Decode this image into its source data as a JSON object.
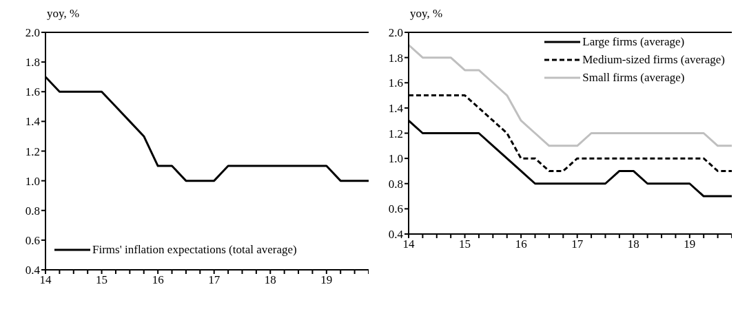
{
  "chart_data": [
    {
      "type": "line",
      "ylabel": "yoy, %",
      "x": [
        14,
        14.25,
        14.5,
        14.75,
        15,
        15.25,
        15.5,
        15.75,
        16,
        16.25,
        16.5,
        16.75,
        17,
        17.25,
        17.5,
        17.75,
        18,
        18.25,
        18.5,
        18.75,
        19,
        19.25,
        19.5,
        19.75
      ],
      "series": [
        {
          "name": "Firms' inflation expectations (total average)",
          "color": "#000000",
          "line_style": "solid",
          "values": [
            1.7,
            1.6,
            1.6,
            1.6,
            1.6,
            1.5,
            1.4,
            1.3,
            1.1,
            1.1,
            1.0,
            1.0,
            1.0,
            1.1,
            1.1,
            1.1,
            1.1,
            1.1,
            1.1,
            1.1,
            1.1,
            1.0,
            1.0,
            1.0
          ]
        }
      ],
      "xlim": [
        14,
        19.75
      ],
      "xticks": [
        14,
        {
          "value": 14.25,
          "label": null
        },
        {
          "value": 14.5,
          "label": null
        },
        {
          "value": 14.75,
          "label": null
        },
        15,
        {
          "value": 15.25,
          "label": null
        },
        {
          "value": 15.5,
          "label": null
        },
        {
          "value": 15.75,
          "label": null
        },
        16,
        {
          "value": 16.25,
          "label": null
        },
        {
          "value": 16.5,
          "label": null
        },
        {
          "value": 16.75,
          "label": null
        },
        17,
        {
          "value": 17.25,
          "label": null
        },
        {
          "value": 17.5,
          "label": null
        },
        {
          "value": 17.75,
          "label": null
        },
        18,
        {
          "value": 18.25,
          "label": null
        },
        {
          "value": 18.5,
          "label": null
        },
        {
          "value": 18.75,
          "label": null
        },
        19,
        {
          "value": 19.25,
          "label": null
        },
        {
          "value": 19.5,
          "label": null
        },
        {
          "value": 19.75,
          "label": null
        }
      ],
      "ylim": [
        0.4,
        2.0
      ],
      "yticks": [
        {
          "value": 0.4,
          "label": "0.4"
        },
        {
          "value": 0.6,
          "label": "0.6"
        },
        {
          "value": 0.8,
          "label": "0.8"
        },
        {
          "value": 1.0,
          "label": "1.0"
        },
        {
          "value": 1.2,
          "label": "1.2"
        },
        {
          "value": 1.4,
          "label": "1.4"
        },
        {
          "value": 1.6,
          "label": "1.6"
        },
        {
          "value": 1.8,
          "label": "1.8"
        },
        {
          "value": 2.0,
          "label": "2.0"
        }
      ],
      "grid": false,
      "legend": "bottom left",
      "marker": "none"
    },
    {
      "type": "line",
      "ylabel": "yoy, %",
      "x": [
        14,
        14.25,
        14.5,
        14.75,
        15,
        15.25,
        15.5,
        15.75,
        16,
        16.25,
        16.5,
        16.75,
        17,
        17.25,
        17.5,
        17.75,
        18,
        18.25,
        18.5,
        18.75,
        19,
        19.25,
        19.5,
        19.75
      ],
      "series": [
        {
          "name": "Large firms (average)",
          "color": "#000000",
          "line_style": "solid",
          "values": [
            1.3,
            1.2,
            1.2,
            1.2,
            1.2,
            1.2,
            1.1,
            1.0,
            0.9,
            0.8,
            0.8,
            0.8,
            0.8,
            0.8,
            0.8,
            0.9,
            0.9,
            0.8,
            0.8,
            0.8,
            0.8,
            0.7,
            0.7,
            0.7
          ]
        },
        {
          "name": "Medium-sized firms (average)",
          "color": "#000000",
          "line_style": "dashed",
          "values": [
            1.5,
            1.5,
            1.5,
            1.5,
            1.5,
            1.4,
            1.3,
            1.2,
            1.0,
            1.0,
            0.9,
            0.9,
            1.0,
            1.0,
            1.0,
            1.0,
            1.0,
            1.0,
            1.0,
            1.0,
            1.0,
            1.0,
            0.9,
            0.9
          ]
        },
        {
          "name": "Small firms (average)",
          "color": "#bfbfbf",
          "line_style": "solid",
          "values": [
            1.9,
            1.8,
            1.8,
            1.8,
            1.7,
            1.7,
            1.6,
            1.5,
            1.3,
            1.2,
            1.1,
            1.1,
            1.1,
            1.2,
            1.2,
            1.2,
            1.2,
            1.2,
            1.2,
            1.2,
            1.2,
            1.2,
            1.1,
            1.1
          ]
        }
      ],
      "xlim": [
        14,
        19.75
      ],
      "xticks": [
        14,
        {
          "value": 14.25,
          "label": null
        },
        {
          "value": 14.5,
          "label": null
        },
        {
          "value": 14.75,
          "label": null
        },
        15,
        {
          "value": 15.25,
          "label": null
        },
        {
          "value": 15.5,
          "label": null
        },
        {
          "value": 15.75,
          "label": null
        },
        16,
        {
          "value": 16.25,
          "label": null
        },
        {
          "value": 16.5,
          "label": null
        },
        {
          "value": 16.75,
          "label": null
        },
        17,
        {
          "value": 17.25,
          "label": null
        },
        {
          "value": 17.5,
          "label": null
        },
        {
          "value": 17.75,
          "label": null
        },
        18,
        {
          "value": 18.25,
          "label": null
        },
        {
          "value": 18.5,
          "label": null
        },
        {
          "value": 18.75,
          "label": null
        },
        19,
        {
          "value": 19.25,
          "label": null
        },
        {
          "value": 19.5,
          "label": null
        },
        {
          "value": 19.75,
          "label": null
        }
      ],
      "ylim": [
        0.4,
        2.0
      ],
      "yticks": [
        {
          "value": 0.4,
          "label": "0.4"
        },
        {
          "value": 0.6,
          "label": "0.6"
        },
        {
          "value": 0.8,
          "label": "0.8"
        },
        {
          "value": 1.0,
          "label": "1.0"
        },
        {
          "value": 1.2,
          "label": "1.2"
        },
        {
          "value": 1.4,
          "label": "1.4"
        },
        {
          "value": 1.6,
          "label": "1.6"
        },
        {
          "value": 1.8,
          "label": "1.8"
        },
        {
          "value": 2.0,
          "label": "2.0"
        }
      ],
      "grid": false,
      "legend": "top right",
      "marker": "none"
    }
  ]
}
